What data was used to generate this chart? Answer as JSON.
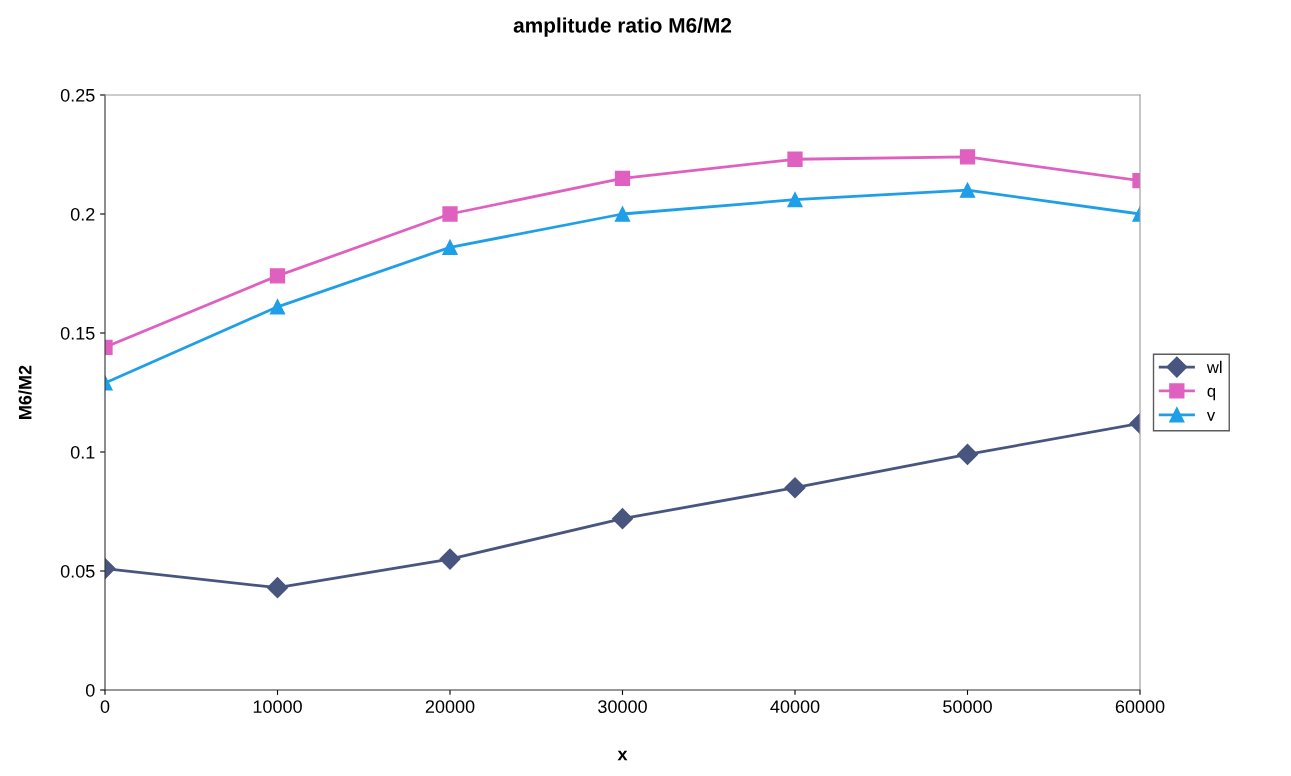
{
  "chart_data": {
    "type": "line",
    "title": "amplitude ratio M6/M2",
    "xlabel": "x",
    "ylabel": "M6/M2",
    "x": [
      0,
      10000,
      20000,
      30000,
      40000,
      50000,
      60000
    ],
    "series": [
      {
        "name": "wl",
        "color": "#48557f",
        "marker": "diamond",
        "values": [
          0.051,
          0.043,
          0.055,
          0.072,
          0.085,
          0.099,
          0.112
        ]
      },
      {
        "name": "q",
        "color": "#e060c0",
        "marker": "square",
        "values": [
          0.144,
          0.174,
          0.2,
          0.215,
          0.223,
          0.224,
          0.214
        ]
      },
      {
        "name": "v",
        "color": "#1e9fe8",
        "marker": "triangle",
        "values": [
          0.129,
          0.161,
          0.186,
          0.2,
          0.206,
          0.21,
          0.2
        ]
      }
    ],
    "xlim": [
      0,
      60000
    ],
    "xticks": [
      0,
      10000,
      20000,
      30000,
      40000,
      50000,
      60000
    ],
    "ylim": [
      0,
      0.25
    ],
    "yticks": [
      0,
      0.05,
      0.1,
      0.15,
      0.2,
      0.25
    ],
    "grid": false,
    "legend": "right",
    "line_style": "solid"
  }
}
